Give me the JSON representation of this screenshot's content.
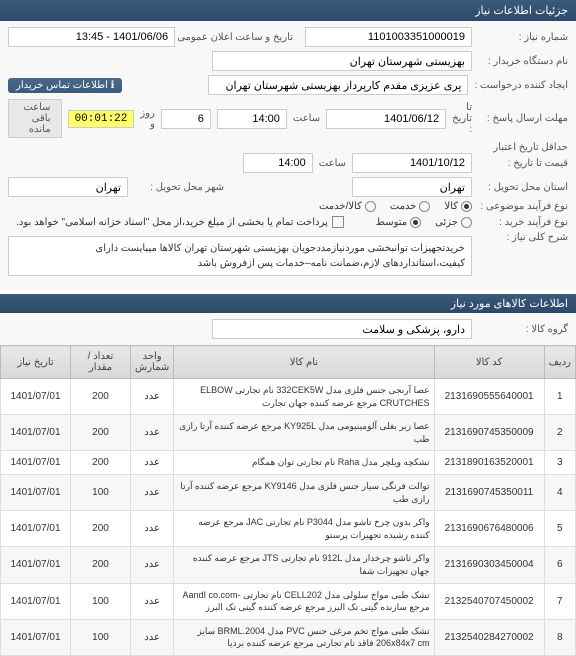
{
  "header": {
    "title": "جزئیات اطلاعات نیاز"
  },
  "form": {
    "need_no_label": "شماره نیاز :",
    "need_no": "1101003351000019",
    "announce_label": "تاریخ و ساعت اعلان عمومی :",
    "announce_value": "1401/06/06 - 13:45",
    "buyer_org_label": "نام دستگاه خریدار :",
    "buyer_org": "بهزیستی شهرستان تهران",
    "requester_label": "ایجاد کننده درخواست :",
    "requester": "پری عزیزی مقدم کارپرداز بهزیستی شهرستان تهران",
    "contact_badge": "اطلاعات تماس خریدار",
    "deadline_label": "مهلت ارسال پاسخ :",
    "deadline_date_lbl": "تا تاریخ :",
    "deadline_date": "1401/06/12",
    "deadline_time_lbl": "ساعت",
    "deadline_time": "14:00",
    "days_lbl": "روز و",
    "days_val": "6",
    "timer": "00:01:22",
    "timer_remain": "ساعت باقی مانده",
    "validity_label": "حداقل تاریخ اعتبار",
    "validity_sub": "قیمت تا تاریخ :",
    "validity_date": "1401/10/12",
    "validity_time": "14:00",
    "province_label": "استان محل تحویل :",
    "province": "تهران",
    "city_label": "شهر محل تحویل :",
    "city": "تهران",
    "subject_label": "نوع فرآیند موضوعی :",
    "radio_goods": "کالا",
    "radio_service": "خدمت",
    "radio_goods_service": "کالا/خدمت",
    "buy_type_label": "نوع فرآیند خرید :",
    "radio_small": "جزئی",
    "radio_medium": "متوسط",
    "payment_note": "پرداخت تمام یا بخشی از مبلغ خرید،از محل \"اسناد خزانه اسلامی\" خواهد بود.",
    "need_desc_label": "شرح کلی نیاز :",
    "need_desc": "خریدتجهیزات توانبخشی موردنیازمددجویان بهزیستی شهرستان تهران کالاها میبایست دارای کیفیت،استانداردهای لازم،ضمانت نامه–خدمات پس ازفروش باشد"
  },
  "items_section": {
    "title": "اطلاعات کالاهای مورد نیاز",
    "group_label": "گروه کالا :",
    "group_value": "دارو، پزشکی و سلامت"
  },
  "table": {
    "columns": {
      "idx": "ردیف",
      "code": "کد کالا",
      "name": "نام کالا",
      "unit": "واحد شمارش",
      "qty": "تعداد / مقدار",
      "date": "تاریخ نیاز"
    },
    "rows": [
      {
        "idx": "1",
        "code": "2131690555640001",
        "name": "عصا آرنجی جنس فلزی مدل 332CEK5W نام تجارتی ELBOW CRUTCHES مرجع عرضه کننده جهان تجارت",
        "unit": "عدد",
        "qty": "200",
        "date": "1401/07/01"
      },
      {
        "idx": "2",
        "code": "2131690745350009",
        "name": "عصا زیر بغلی آلومینیومی مدل KY925L مرجع عرضه کننده آرتا رازی طب",
        "unit": "عدد",
        "qty": "200",
        "date": "1401/07/01"
      },
      {
        "idx": "3",
        "code": "2131890163520001",
        "name": "تشکچه ویلچر مدل Raha نام تجارتی توان همگام",
        "unit": "عدد",
        "qty": "200",
        "date": "1401/07/01"
      },
      {
        "idx": "4",
        "code": "2131690745350011",
        "name": "توالت فرنگی سیار جنس فلزی مدل KY9146 مرجع عرضه کننده آرتا رازی طب",
        "unit": "عدد",
        "qty": "100",
        "date": "1401/07/01"
      },
      {
        "idx": "5",
        "code": "2131690676480006",
        "name": "واکر بدون چرخ تاشو مدل P3044 نام تجارتی JAC مرجع عرضه کننده رشیده تجهیزات پرستو",
        "unit": "عدد",
        "qty": "200",
        "date": "1401/07/01"
      },
      {
        "idx": "6",
        "code": "2131690303450004",
        "name": "واکر تاشو چرخدار مدل 912L نام تجارتی JTS مرجع عرضه کننده جهان تجهیزات شفا",
        "unit": "عدد",
        "qty": "200",
        "date": "1401/07/01"
      },
      {
        "idx": "7",
        "code": "2132540707450002",
        "name": "تشک طبی مواج سلولی مدل CELL202 نام تجارتی -AandI co.com مرجع سازنده گیتی تک البرز مرجع عرضه کننده گیتی تک البرز",
        "unit": "عدد",
        "qty": "100",
        "date": "1401/07/01"
      },
      {
        "idx": "8",
        "code": "2132540284270002",
        "name": "تشک طبی مواج تخم مرغی جنس PVC مدل BRML.2004 سایز 206x84x7 cm فاقد نام تجارتی مرجع عرضه کننده بردیا",
        "unit": "عدد",
        "qty": "100",
        "date": "1401/07/01"
      }
    ]
  }
}
